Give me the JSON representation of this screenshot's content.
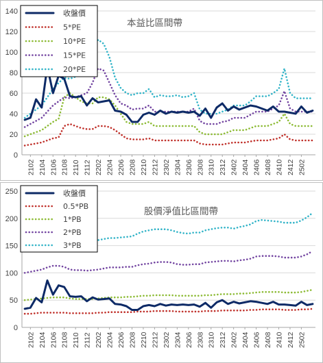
{
  "x_ticks": [
    "2102",
    "2104",
    "2106",
    "2108",
    "2110",
    "2112",
    "2202",
    "2204",
    "2206",
    "2208",
    "2210",
    "2212",
    "2302",
    "2304",
    "2306",
    "2308",
    "2310",
    "2312",
    "2402",
    "2404",
    "2406",
    "2408",
    "2410",
    "2412",
    "2502"
  ],
  "chart_data": [
    {
      "type": "line",
      "title": "本益比區間帶",
      "ylim": [
        0,
        140
      ],
      "yticks": [
        0,
        20,
        40,
        60,
        80,
        100,
        120,
        140
      ],
      "grid": true,
      "legend_position": "top-left",
      "x": [
        "2101",
        "2102",
        "2103",
        "2104",
        "2105",
        "2106",
        "2107",
        "2108",
        "2109",
        "2110",
        "2111",
        "2112",
        "2201",
        "2202",
        "2203",
        "2204",
        "2205",
        "2206",
        "2207",
        "2208",
        "2209",
        "2210",
        "2211",
        "2212",
        "2301",
        "2302",
        "2303",
        "2304",
        "2305",
        "2306",
        "2307",
        "2308",
        "2309",
        "2310",
        "2311",
        "2312",
        "2401",
        "2402",
        "2403",
        "2404",
        "2405",
        "2406",
        "2407",
        "2408",
        "2409",
        "2410",
        "2411",
        "2412",
        "2501",
        "2502",
        "2503",
        "2504"
      ],
      "series": [
        {
          "name": "收盤價",
          "color": "#0d2a66",
          "dash": "solid",
          "values": [
            34,
            36,
            54,
            46,
            86,
            60,
            77,
            74,
            57,
            56,
            57,
            48,
            55,
            51,
            52,
            53,
            43,
            42,
            39,
            32,
            32,
            39,
            41,
            39,
            43,
            40,
            42,
            41,
            42,
            41,
            42,
            38,
            45,
            36,
            46,
            50,
            43,
            47,
            44,
            46,
            48,
            47,
            45,
            43,
            47,
            42,
            42,
            41,
            40,
            47,
            41,
            43
          ]
        },
        {
          "name": "5*PE",
          "color": "#c0312b",
          "dash": "dot",
          "values": [
            9,
            10,
            11,
            12,
            14,
            16,
            17,
            28,
            30,
            28,
            26,
            25,
            25,
            28,
            28,
            27,
            24,
            20,
            16,
            15,
            15,
            15,
            16,
            14,
            14,
            14,
            14,
            14,
            14,
            14,
            14,
            11,
            10,
            10,
            10,
            10,
            11,
            12,
            12,
            12,
            13,
            14,
            14,
            14,
            15,
            16,
            20,
            15,
            14,
            14,
            14,
            14
          ]
        },
        {
          "name": "10*PE",
          "color": "#8dbb35",
          "dash": "dot",
          "values": [
            18,
            20,
            22,
            24,
            28,
            32,
            35,
            56,
            60,
            56,
            52,
            50,
            50,
            56,
            56,
            54,
            48,
            40,
            32,
            30,
            30,
            30,
            32,
            28,
            28,
            28,
            28,
            28,
            28,
            28,
            28,
            22,
            20,
            20,
            20,
            20,
            22,
            24,
            24,
            24,
            26,
            28,
            28,
            28,
            30,
            32,
            40,
            30,
            28,
            28,
            28,
            28
          ]
        },
        {
          "name": "15*PE",
          "color": "#7345a1",
          "dash": "dot",
          "values": [
            27,
            30,
            33,
            36,
            42,
            48,
            52,
            56,
            55,
            56,
            58,
            60,
            70,
            84,
            82,
            70,
            58,
            50,
            48,
            44,
            45,
            45,
            48,
            42,
            42,
            42,
            42,
            42,
            42,
            42,
            45,
            33,
            30,
            30,
            30,
            32,
            33,
            36,
            36,
            36,
            39,
            42,
            42,
            42,
            45,
            48,
            62,
            45,
            42,
            42,
            42,
            42
          ]
        },
        {
          "name": "20*PE",
          "color": "#33b4c8",
          "dash": "dot",
          "values": [
            36,
            40,
            44,
            48,
            56,
            64,
            70,
            75,
            74,
            76,
            80,
            85,
            100,
            112,
            108,
            95,
            75,
            65,
            60,
            58,
            60,
            60,
            64,
            56,
            58,
            57,
            57,
            58,
            56,
            57,
            60,
            44,
            40,
            40,
            40,
            42,
            44,
            48,
            48,
            48,
            52,
            57,
            57,
            57,
            60,
            64,
            84,
            60,
            55,
            55,
            55,
            55
          ]
        }
      ]
    },
    {
      "type": "line",
      "title": "股價淨值比區間帶",
      "ylim": [
        0,
        250
      ],
      "yticks": [
        0,
        50,
        100,
        150,
        200,
        250
      ],
      "grid": true,
      "legend_position": "top-left",
      "x": [
        "2101",
        "2102",
        "2103",
        "2104",
        "2105",
        "2106",
        "2107",
        "2108",
        "2109",
        "2110",
        "2111",
        "2112",
        "2201",
        "2202",
        "2203",
        "2204",
        "2205",
        "2206",
        "2207",
        "2208",
        "2209",
        "2210",
        "2211",
        "2212",
        "2301",
        "2302",
        "2303",
        "2304",
        "2305",
        "2306",
        "2307",
        "2308",
        "2309",
        "2310",
        "2311",
        "2312",
        "2401",
        "2402",
        "2403",
        "2404",
        "2405",
        "2406",
        "2407",
        "2408",
        "2409",
        "2410",
        "2411",
        "2412",
        "2501",
        "2502",
        "2503",
        "2504"
      ],
      "series": [
        {
          "name": "收盤價",
          "color": "#0d2a66",
          "dash": "solid",
          "values": [
            34,
            36,
            54,
            46,
            86,
            60,
            77,
            74,
            57,
            56,
            57,
            48,
            55,
            51,
            52,
            53,
            43,
            42,
            39,
            32,
            32,
            39,
            41,
            39,
            43,
            40,
            42,
            41,
            42,
            41,
            42,
            38,
            45,
            36,
            46,
            50,
            43,
            47,
            44,
            46,
            48,
            47,
            45,
            43,
            47,
            42,
            42,
            41,
            40,
            47,
            41,
            43
          ]
        },
        {
          "name": "0.5*PB",
          "color": "#c0312b",
          "dash": "dot",
          "values": [
            25,
            25,
            26,
            27,
            27,
            27,
            27,
            27,
            26,
            26,
            26,
            26,
            26,
            27,
            27,
            28,
            28,
            28,
            28,
            28,
            29,
            29,
            29,
            30,
            30,
            30,
            30,
            29,
            29,
            29,
            29,
            29,
            30,
            30,
            30,
            31,
            31,
            31,
            31,
            31,
            32,
            32,
            33,
            33,
            33,
            33,
            32,
            32,
            32,
            33,
            33,
            34
          ]
        },
        {
          "name": "1*PB",
          "color": "#8dbb35",
          "dash": "dot",
          "values": [
            50,
            51,
            52,
            53,
            54,
            55,
            55,
            55,
            53,
            52,
            52,
            52,
            52,
            53,
            54,
            55,
            55,
            55,
            56,
            56,
            57,
            58,
            58,
            59,
            59,
            59,
            59,
            58,
            58,
            58,
            58,
            58,
            59,
            59,
            60,
            61,
            61,
            61,
            62,
            62,
            63,
            64,
            65,
            65,
            65,
            65,
            64,
            64,
            64,
            65,
            67,
            69
          ]
        },
        {
          "name": "2*PB",
          "color": "#7345a1",
          "dash": "dot",
          "values": [
            100,
            102,
            104,
            106,
            110,
            113,
            113,
            111,
            106,
            105,
            105,
            104,
            105,
            106,
            108,
            110,
            110,
            110,
            111,
            111,
            114,
            116,
            117,
            119,
            120,
            120,
            119,
            116,
            115,
            115,
            116,
            116,
            119,
            120,
            121,
            122,
            122,
            121,
            123,
            124,
            126,
            130,
            131,
            131,
            131,
            130,
            128,
            128,
            128,
            130,
            134,
            140
          ]
        },
        {
          "name": "3*PB",
          "color": "#33b4c8",
          "dash": "dot",
          "values": [
            150,
            152,
            155,
            158,
            164,
            168,
            170,
            166,
            160,
            158,
            157,
            156,
            157,
            160,
            162,
            164,
            164,
            165,
            166,
            167,
            172,
            176,
            178,
            180,
            180,
            180,
            178,
            175,
            173,
            172,
            174,
            174,
            178,
            180,
            182,
            183,
            183,
            181,
            184,
            186,
            189,
            195,
            197,
            196,
            195,
            194,
            192,
            192,
            192,
            196,
            202,
            210
          ]
        }
      ]
    }
  ]
}
